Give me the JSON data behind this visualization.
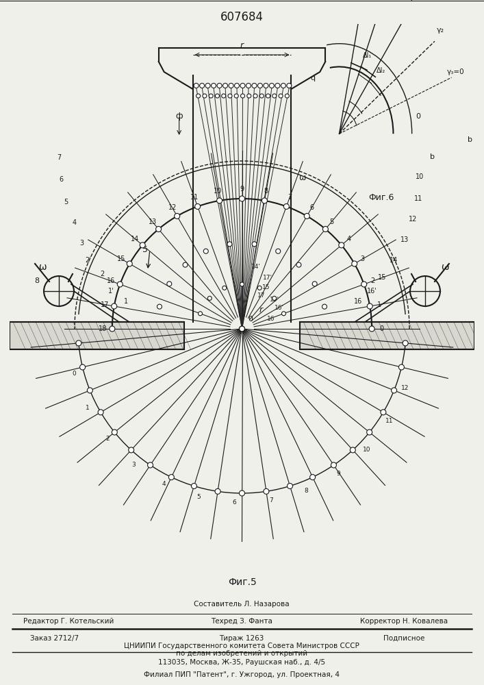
{
  "title": "607684",
  "bg_color": "#f0f0eb",
  "line_color": "#1a1a1a",
  "fig5_label": "Фиг.5",
  "fig6_label": "Фиг.6",
  "footer_col1": "Редактор Г. Котельский",
  "footer_col2": "Техред З. Фанта",
  "footer_col3": "Корректор Н. Ковалева",
  "footer_sestavitel": "Составитель Л. Назарова",
  "footer_zakaz": "Заказ 2712/7",
  "footer_tirazh": "Тираж 1263",
  "footer_podpisnoe": "Подписное",
  "footer_cniip1": "ЦНИИПИ Государственного комитета Совета Министров СССР",
  "footer_cniip2": "по делам изобретений и открытий",
  "footer_addr": "113035, Москва, Ж-35, Раушская наб., д. 4/5",
  "footer_filial": "Филиал ПИП \"Патент\", г. Ужгород, ул. Проектная, 4"
}
